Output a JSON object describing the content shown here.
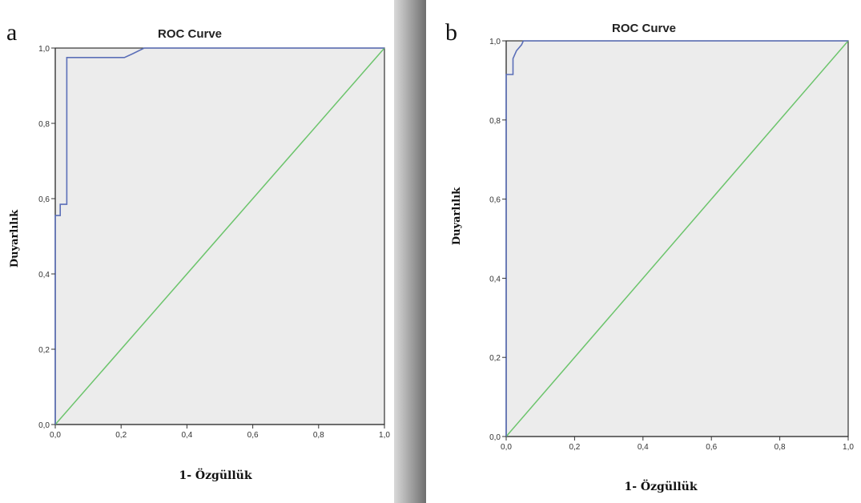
{
  "colors": {
    "plot_background": "#ececec",
    "roc_curve": "#5b6fb8",
    "reference_line": "#6cc46c",
    "divider_dark": "#7a7a7a"
  },
  "chart_data": [
    {
      "type": "line",
      "panel_label": "a",
      "title": "ROC Curve",
      "xlabel": "1- Özgüllük",
      "ylabel": "Duyarlılık",
      "xlim": [
        0,
        1
      ],
      "ylim": [
        0,
        1
      ],
      "xticks": [
        "0,0",
        "0,2",
        "0,4",
        "0,6",
        "0,8",
        "1,0"
      ],
      "yticks": [
        "0,0",
        "0,2",
        "0,4",
        "0,6",
        "0,8",
        "1,0"
      ],
      "grid": false,
      "series": [
        {
          "x": [
            0,
            0,
            0.015,
            0.015,
            0.035,
            0.035,
            0.21,
            0.235,
            0.27,
            1.0
          ],
          "y": [
            0,
            0.555,
            0.555,
            0.585,
            0.585,
            0.975,
            0.975,
            0.985,
            1.0,
            1.0
          ]
        },
        {
          "x": [
            0,
            1
          ],
          "y": [
            0,
            1
          ]
        }
      ]
    },
    {
      "type": "line",
      "panel_label": "b",
      "title": "ROC Curve",
      "xlabel": "1- Özgüllük",
      "ylabel": "Duyarlılık",
      "xlim": [
        0,
        1
      ],
      "ylim": [
        0,
        1
      ],
      "xticks": [
        "0,0",
        "0,2",
        "0,4",
        "0,6",
        "0,8",
        "1,0"
      ],
      "yticks": [
        "0,0",
        "0,2",
        "0,4",
        "0,6",
        "0,8",
        "1,0"
      ],
      "grid": false,
      "series": [
        {
          "x": [
            0,
            0,
            0.02,
            0.02,
            0.03,
            0.045,
            0.05,
            1.0
          ],
          "y": [
            0,
            0.915,
            0.915,
            0.955,
            0.975,
            0.99,
            1.0,
            1.0
          ]
        },
        {
          "x": [
            0,
            1
          ],
          "y": [
            0,
            1
          ]
        }
      ]
    }
  ]
}
